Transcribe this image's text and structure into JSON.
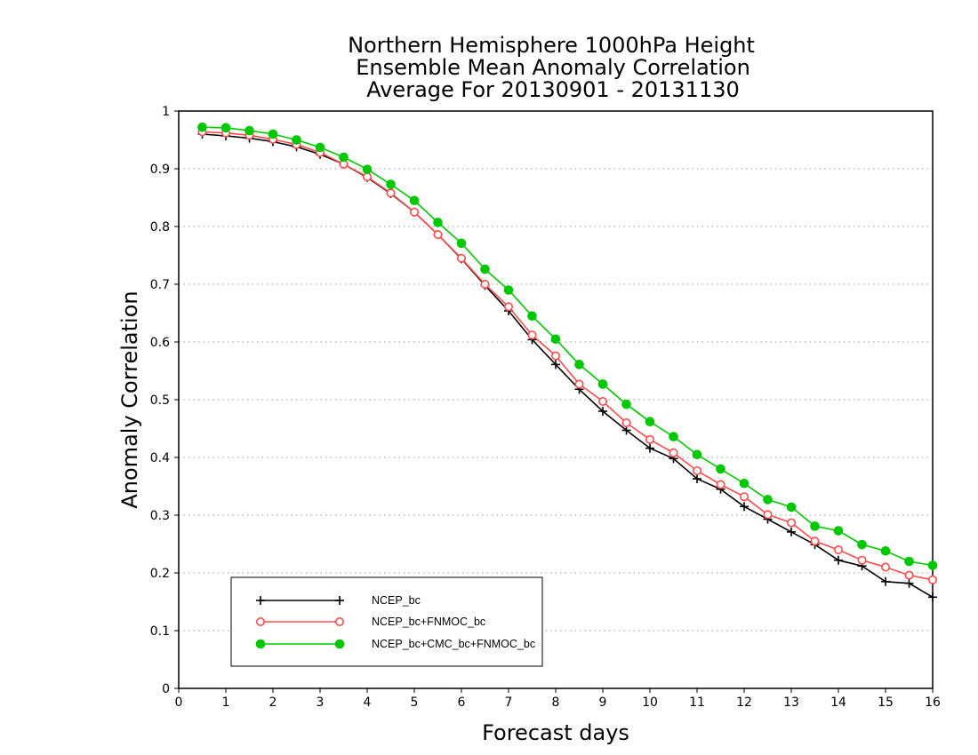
{
  "chart_data": {
    "type": "line",
    "title_lines": [
      "Northern Hemisphere 1000hPa Height",
      "Ensemble Mean Anomaly Correlation",
      "Average For 20130901 - 20131130"
    ],
    "xlabel": "Forecast days",
    "ylabel": "Anomaly Correlation",
    "xlim": [
      0,
      16
    ],
    "ylim": [
      0,
      1
    ],
    "xticks": [
      "0",
      "1",
      "2",
      "3",
      "4",
      "5",
      "6",
      "7",
      "8",
      "9",
      "10",
      "11",
      "12",
      "13",
      "14",
      "15",
      "16"
    ],
    "yticks": [
      "0",
      "0.1",
      "0.2",
      "0.3",
      "0.4",
      "0.5",
      "0.6",
      "0.7",
      "0.8",
      "0.9",
      "1"
    ],
    "grid": "horizontal dotted",
    "legend_position": "bottom-left",
    "x": [
      0.5,
      1,
      1.5,
      2,
      2.5,
      3,
      3.5,
      4,
      4.5,
      5,
      5.5,
      6,
      6.5,
      7,
      7.5,
      8,
      8.5,
      9,
      9.5,
      10,
      10.5,
      11,
      11.5,
      12,
      12.5,
      13,
      13.5,
      14,
      14.5,
      15,
      15.5,
      16
    ],
    "series": [
      {
        "name": "NCEP_bc",
        "color": "#000000",
        "marker": "plus",
        "values": [
          0.96,
          0.957,
          0.953,
          0.947,
          0.938,
          0.925,
          0.908,
          0.885,
          0.857,
          0.825,
          0.786,
          0.744,
          0.698,
          0.654,
          0.604,
          0.561,
          0.518,
          0.48,
          0.447,
          0.416,
          0.398,
          0.363,
          0.345,
          0.315,
          0.293,
          0.271,
          0.249,
          0.222,
          0.212,
          0.185,
          0.182,
          0.158
        ]
      },
      {
        "name": "NCEP_bc+FNMOC_bc",
        "color": "#ff4b4b",
        "marker": "open-circle",
        "values": [
          0.964,
          0.962,
          0.958,
          0.951,
          0.942,
          0.928,
          0.908,
          0.886,
          0.858,
          0.825,
          0.786,
          0.745,
          0.7,
          0.661,
          0.612,
          0.576,
          0.527,
          0.497,
          0.46,
          0.431,
          0.408,
          0.377,
          0.353,
          0.332,
          0.301,
          0.287,
          0.255,
          0.24,
          0.222,
          0.21,
          0.196,
          0.188
        ]
      },
      {
        "name": "NCEP_bc+CMC_bc+FNMOC_bc",
        "color": "#00c800",
        "marker": "filled-circle",
        "values": [
          0.972,
          0.971,
          0.966,
          0.96,
          0.95,
          0.937,
          0.92,
          0.899,
          0.873,
          0.845,
          0.807,
          0.771,
          0.726,
          0.69,
          0.645,
          0.605,
          0.561,
          0.527,
          0.492,
          0.462,
          0.436,
          0.405,
          0.38,
          0.355,
          0.327,
          0.314,
          0.281,
          0.273,
          0.249,
          0.238,
          0.22,
          0.213
        ]
      }
    ]
  }
}
